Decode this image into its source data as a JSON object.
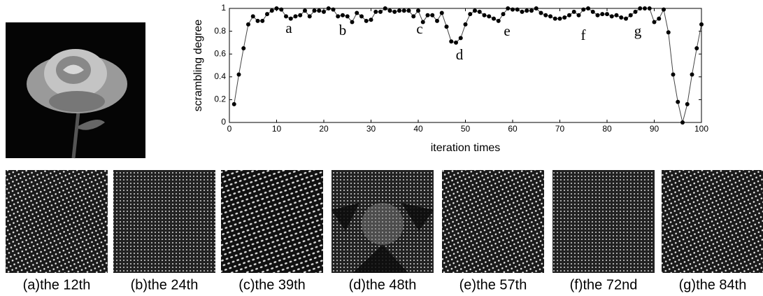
{
  "chart_data": {
    "type": "line",
    "xlabel": "iteration times",
    "ylabel": "scrambling degree",
    "x": [
      1,
      2,
      3,
      4,
      5,
      6,
      7,
      8,
      9,
      10,
      11,
      12,
      13,
      14,
      15,
      16,
      17,
      18,
      19,
      20,
      21,
      22,
      23,
      24,
      25,
      26,
      27,
      28,
      29,
      30,
      31,
      32,
      33,
      34,
      35,
      36,
      37,
      38,
      39,
      40,
      41,
      42,
      43,
      44,
      45,
      46,
      47,
      48,
      49,
      50,
      51,
      52,
      53,
      54,
      55,
      56,
      57,
      58,
      59,
      60,
      61,
      62,
      63,
      64,
      65,
      66,
      67,
      68,
      69,
      70,
      71,
      72,
      73,
      74,
      75,
      76,
      77,
      78,
      79,
      80,
      81,
      82,
      83,
      84,
      85,
      86,
      87,
      88,
      89,
      90,
      91,
      92,
      93,
      94,
      95,
      96,
      97,
      98,
      99,
      100
    ],
    "values": [
      0.16,
      0.42,
      0.65,
      0.86,
      0.93,
      0.89,
      0.89,
      0.95,
      0.98,
      1.0,
      0.99,
      0.93,
      0.91,
      0.93,
      0.94,
      0.98,
      0.93,
      0.98,
      0.98,
      0.97,
      1.0,
      0.99,
      0.93,
      0.94,
      0.93,
      0.88,
      0.96,
      0.93,
      0.89,
      0.9,
      0.97,
      0.97,
      1.0,
      0.98,
      0.97,
      0.98,
      0.98,
      0.98,
      0.93,
      0.98,
      0.88,
      0.94,
      0.94,
      0.89,
      0.96,
      0.84,
      0.71,
      0.7,
      0.74,
      0.86,
      0.95,
      0.98,
      0.97,
      0.94,
      0.93,
      0.91,
      0.89,
      0.95,
      1.0,
      0.99,
      0.99,
      0.97,
      0.98,
      0.98,
      1.0,
      0.96,
      0.94,
      0.93,
      0.91,
      0.91,
      0.92,
      0.94,
      0.97,
      0.94,
      0.99,
      1.0,
      0.97,
      0.94,
      0.95,
      0.95,
      0.93,
      0.94,
      0.92,
      0.91,
      0.94,
      0.97,
      1.0,
      1.0,
      1.0,
      0.88,
      0.91,
      0.99,
      0.79,
      0.42,
      0.18,
      0.0,
      0.16,
      0.42,
      0.65,
      0.86
    ],
    "color": "#000000",
    "xlim": [
      0,
      100
    ],
    "xticks": [
      0,
      10,
      20,
      30,
      40,
      50,
      60,
      70,
      80,
      90,
      100
    ],
    "ylim": [
      0,
      1
    ],
    "yticks": [
      0,
      0.2,
      0.4,
      0.6,
      0.8,
      1
    ],
    "annotations": [
      "a",
      "b",
      "c",
      "d",
      "e",
      "f",
      "g"
    ]
  },
  "panels": {
    "captions": [
      "(a)the 12th",
      "(b)the 24th",
      "(c)the 39th",
      "(d)the 48th",
      "(e)the 57th",
      "(f)the 72nd",
      "(g)the 84th"
    ]
  }
}
